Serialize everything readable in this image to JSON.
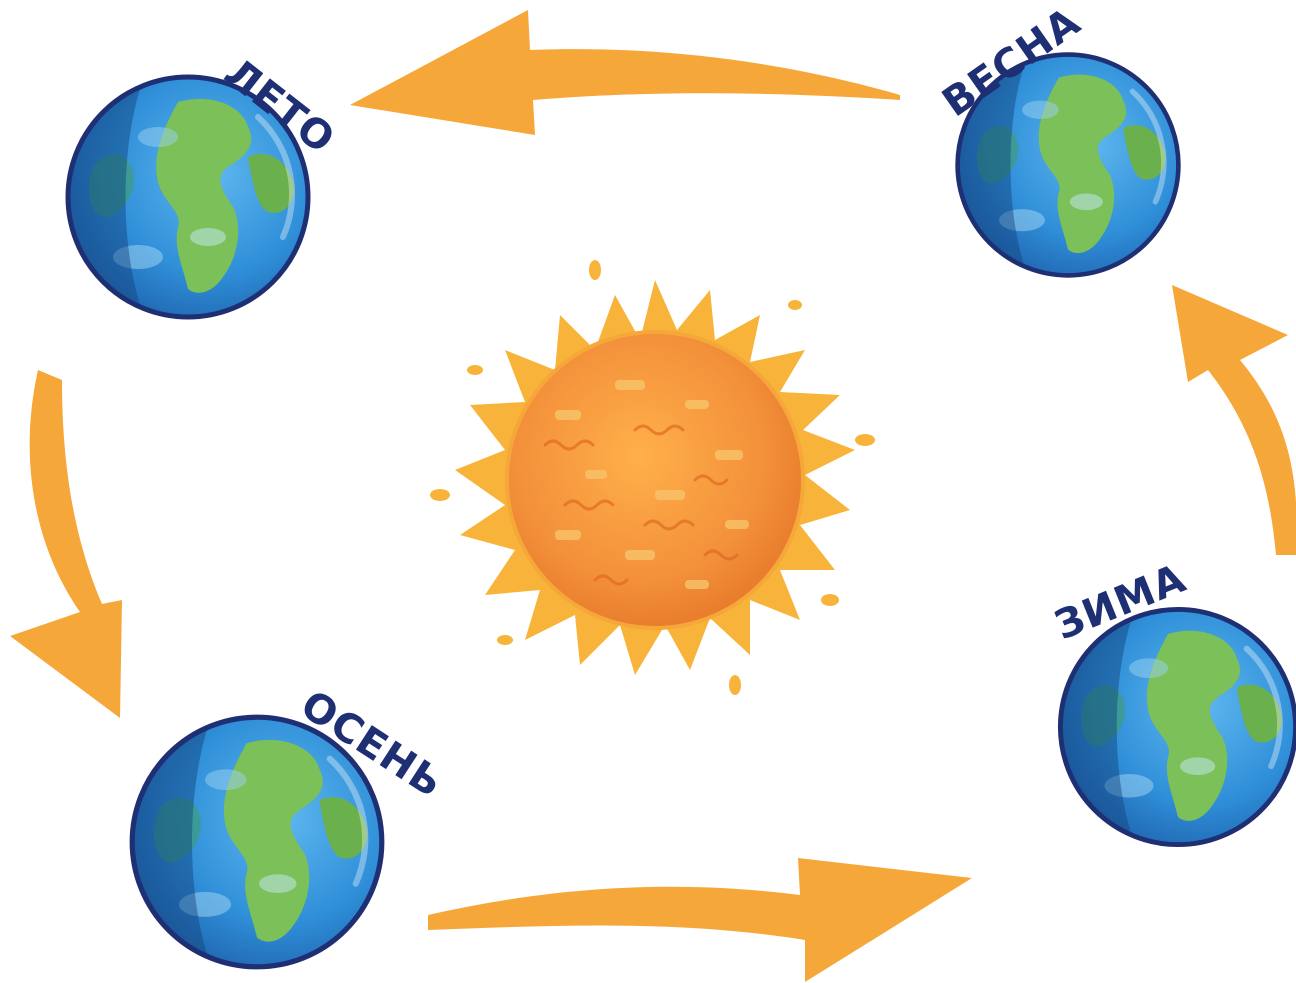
{
  "diagram": {
    "center": {
      "icon": "sun-icon"
    },
    "seasons": [
      {
        "id": "summer",
        "label": "ЛЕТО",
        "icon": "earth-icon"
      },
      {
        "id": "spring",
        "label": "ВЕСНА",
        "icon": "earth-icon"
      },
      {
        "id": "autumn",
        "label": "ОСЕНЬ",
        "icon": "earth-icon"
      },
      {
        "id": "winter",
        "label": "ЗИМА",
        "icon": "earth-icon"
      }
    ],
    "arrows": [
      {
        "from": "spring",
        "to": "summer"
      },
      {
        "from": "summer",
        "to": "autumn"
      },
      {
        "from": "autumn",
        "to": "winter"
      },
      {
        "from": "winter",
        "to": "spring"
      }
    ],
    "colors": {
      "arrow": "#f6a73a",
      "ocean": "#2e8fd6",
      "ocean_dark": "#1e63ad",
      "land": "#7cc05a",
      "outline": "#1f2f73",
      "sun_core": "#f39a3a",
      "sun_flare": "#f8b43a",
      "label": "#1f2f73"
    }
  }
}
